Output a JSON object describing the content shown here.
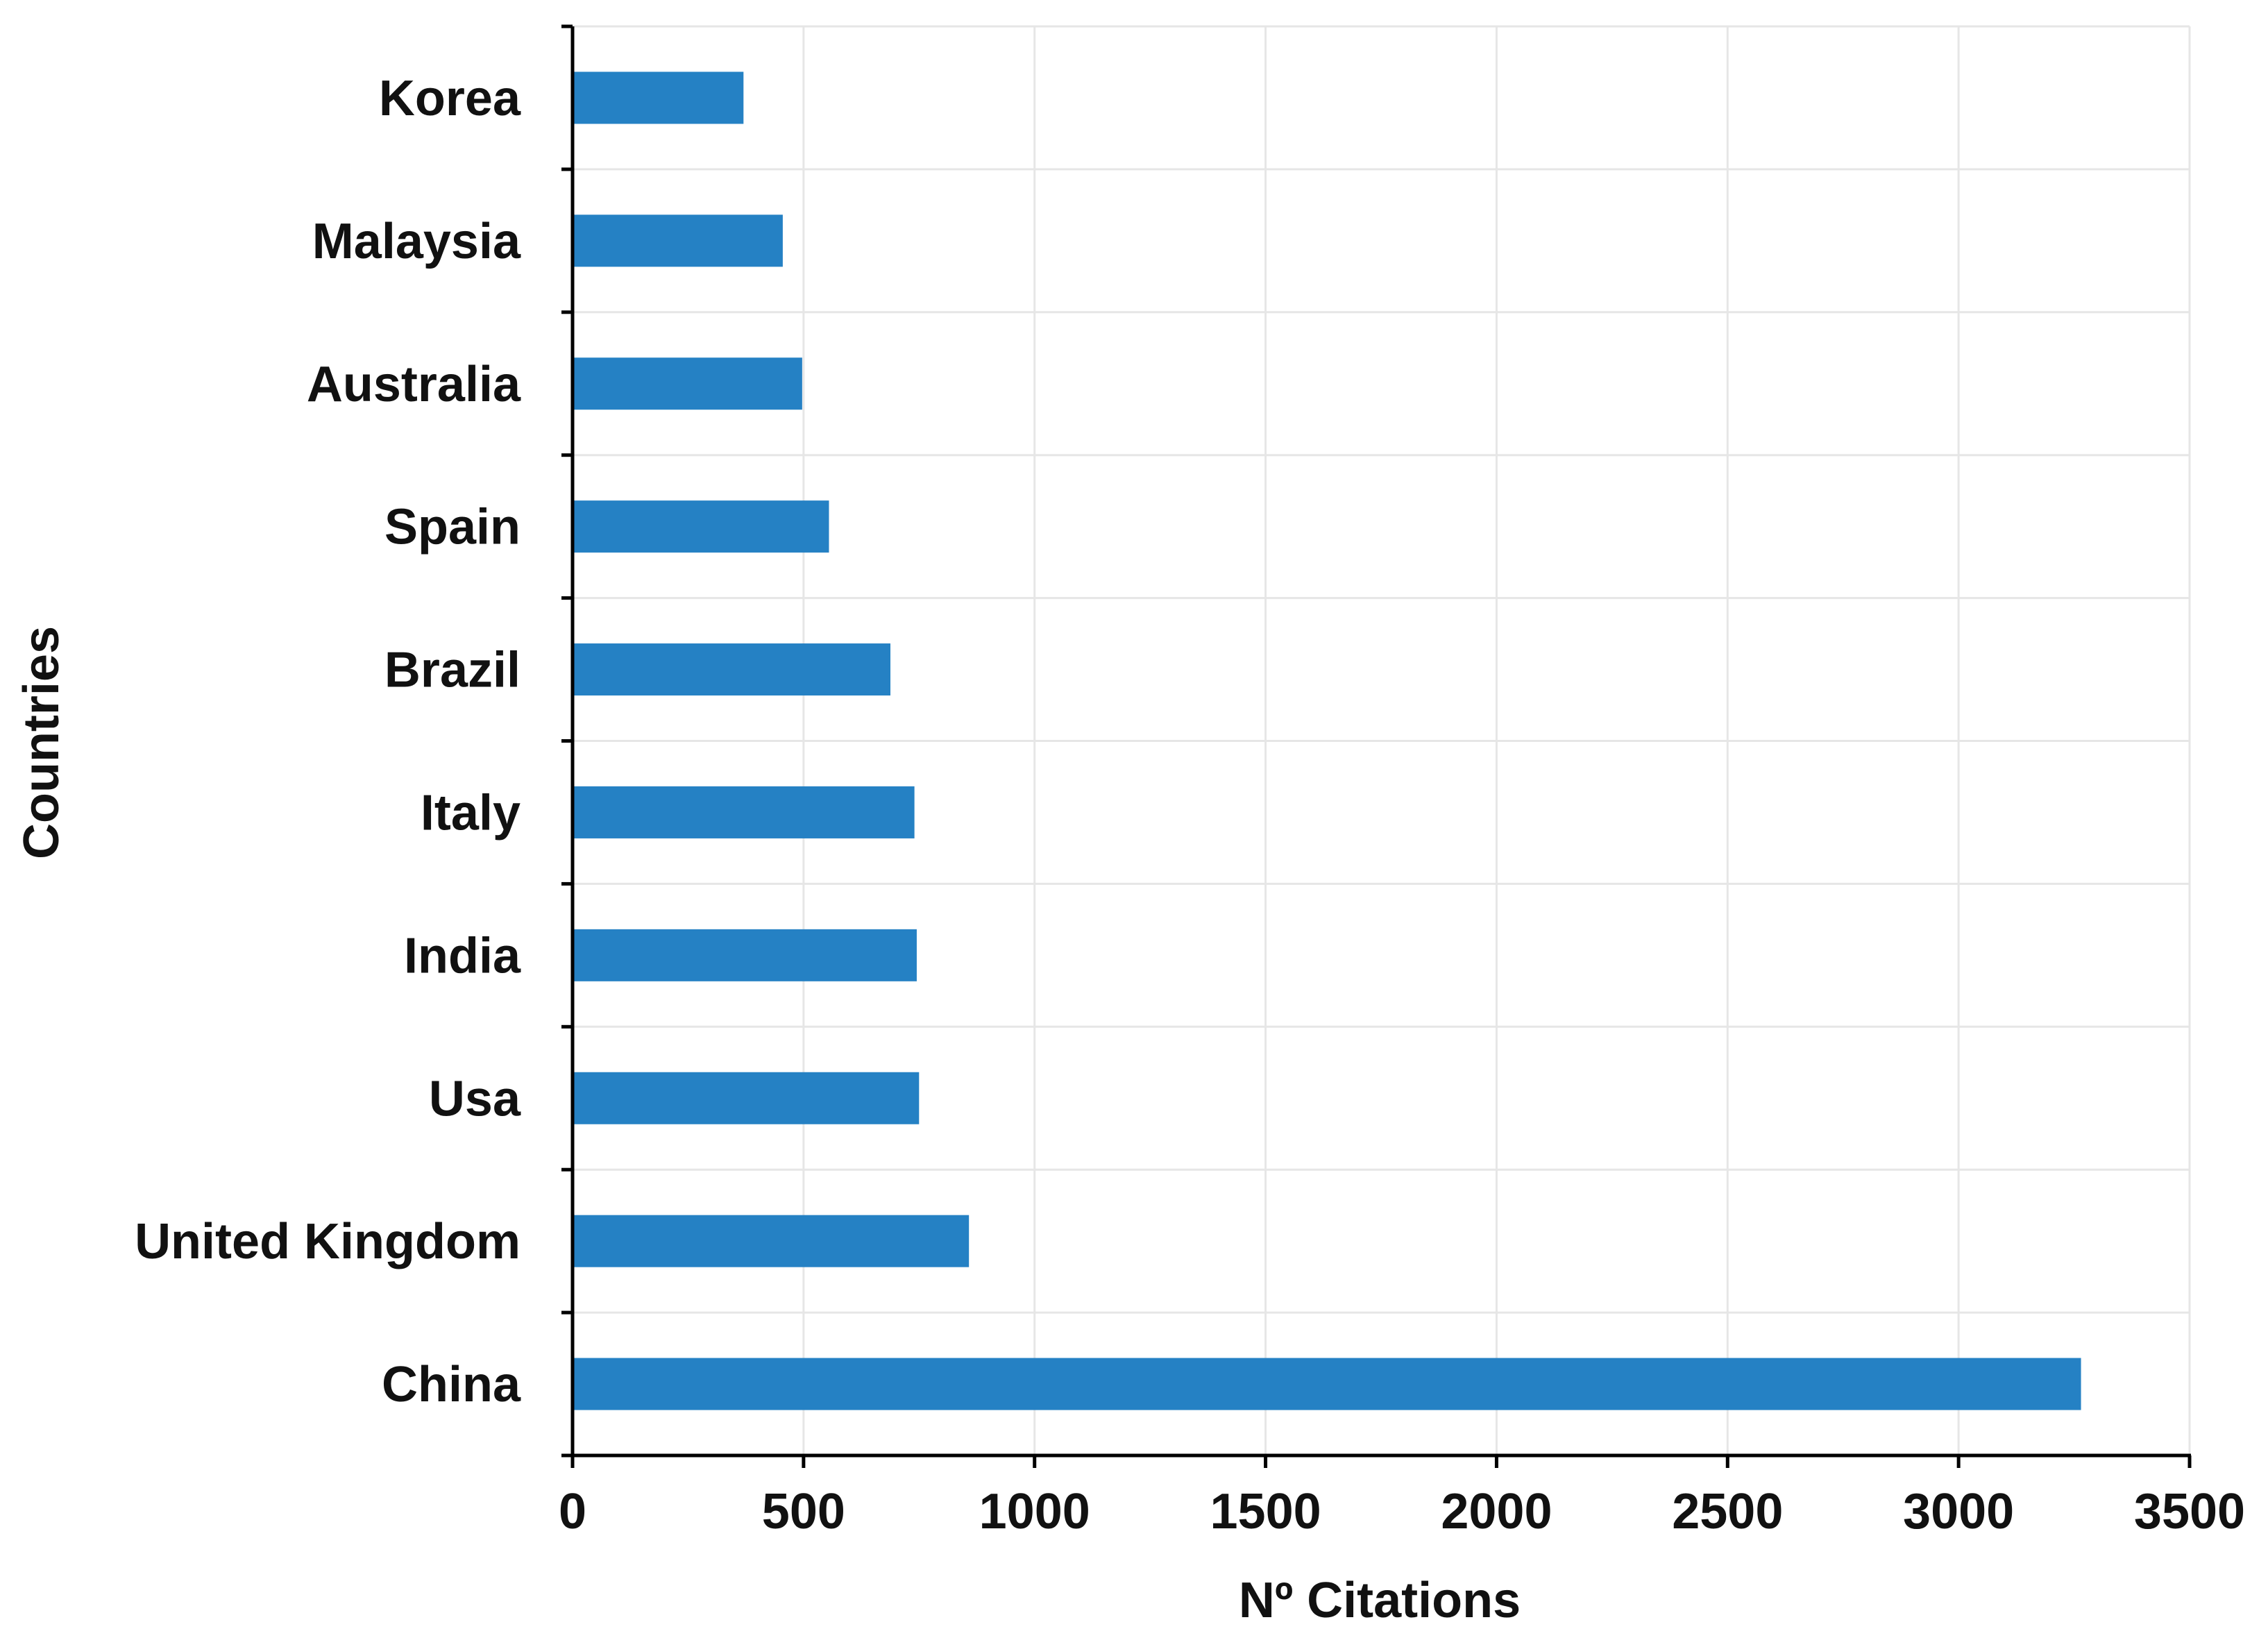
{
  "chart_data": {
    "type": "bar",
    "orientation": "horizontal",
    "title": "",
    "xlabel": "Nº Citations",
    "ylabel": "Countries",
    "categories": [
      "Korea",
      "Malaysia",
      "Australia",
      "Spain",
      "Brazil",
      "Italy",
      "India",
      "Usa",
      "United Kingdom",
      "China"
    ],
    "values": [
      370,
      455,
      497,
      555,
      688,
      740,
      745,
      750,
      858,
      3265
    ],
    "xlim": [
      0,
      3500
    ],
    "xticks": [
      "0",
      "500",
      "1000",
      "1500",
      "2000",
      "2500",
      "3000",
      "3500"
    ],
    "grid": true,
    "bar_color": "#2581c4"
  }
}
